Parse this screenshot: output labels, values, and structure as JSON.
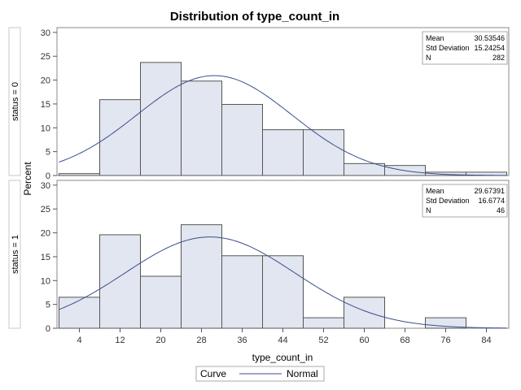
{
  "chart_data": {
    "type": "bar",
    "title": "Distribution of type_count_in",
    "xlabel": "type_count_in",
    "ylabel": "Percent",
    "x_ticks": [
      4,
      12,
      20,
      28,
      36,
      44,
      52,
      60,
      68,
      76,
      84
    ],
    "bin_edges": [
      0,
      8,
      16,
      24,
      32,
      40,
      48,
      56,
      64,
      72,
      80,
      88
    ],
    "xlim": [
      -0.4,
      88.4
    ],
    "ylim": [
      0,
      31
    ],
    "y_ticks": [
      0,
      5,
      10,
      15,
      20,
      25,
      30
    ],
    "grid": false,
    "bar_color": "#e1e6f0",
    "curve_color": "#3b4e8c",
    "legend": {
      "title": "Curve",
      "entries": [
        "Normal"
      ],
      "placement": "bottom"
    },
    "panels": [
      {
        "strip_label": "status = 0",
        "values": [
          0.4,
          15.9,
          23.7,
          19.8,
          14.9,
          9.6,
          9.6,
          2.5,
          2.1,
          0.7,
          0.7
        ],
        "stats": [
          {
            "label": "Mean",
            "value": "30.53546"
          },
          {
            "label": "Std Deviation",
            "value": "15.24254"
          },
          {
            "label": "N",
            "value": "282"
          }
        ],
        "mean": 30.53546,
        "sd": 15.24254
      },
      {
        "strip_label": "status = 1",
        "values": [
          6.5,
          19.6,
          10.9,
          21.7,
          15.2,
          15.2,
          2.2,
          6.5,
          0,
          2.2,
          0
        ],
        "stats": [
          {
            "label": "Mean",
            "value": "29.67391"
          },
          {
            "label": "Std Deviation",
            "value": "16.6774"
          },
          {
            "label": "N",
            "value": "46"
          }
        ],
        "mean": 29.67391,
        "sd": 16.6774
      }
    ]
  }
}
